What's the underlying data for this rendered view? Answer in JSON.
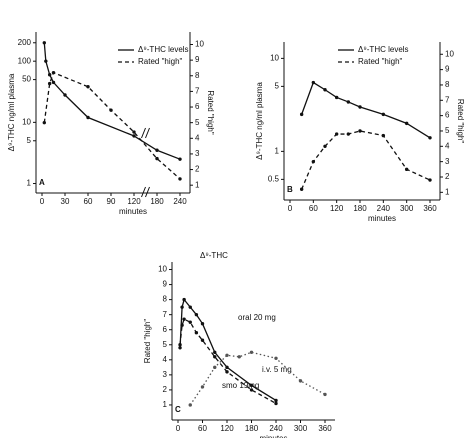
{
  "chart_data": [
    {
      "type": "line",
      "panel": "A",
      "y_label": "Δ⁹-THC ng/ml plasma",
      "y2_label": "Rated \"high\"",
      "x_label": "minutes",
      "ylog": true,
      "ylim": [
        0.7,
        300
      ],
      "yticks": [
        1,
        5,
        10,
        50,
        100,
        200
      ],
      "y2lim": [
        0.5,
        10.8
      ],
      "y2ticks": [
        1,
        2,
        3,
        4,
        5,
        6,
        7,
        8,
        9,
        10
      ],
      "xlim": [
        0,
        250
      ],
      "xticks": [
        0,
        30,
        60,
        90,
        120,
        180,
        240
      ],
      "axis_break": true,
      "legend": true,
      "series": [
        {
          "name": "Δ⁹-THC levels",
          "style": "solid",
          "color": "#111",
          "x": [
            3,
            5,
            10,
            15,
            30,
            60,
            120,
            180,
            240
          ],
          "values": [
            200,
            100,
            60,
            45,
            28,
            12,
            6,
            3.5,
            2.5
          ]
        },
        {
          "name": "Rated \"high\"",
          "style": "dashed",
          "color": "#111",
          "axis": "y2",
          "x": [
            3,
            10,
            15,
            60,
            90,
            120,
            180,
            240
          ],
          "values": [
            5,
            7.5,
            8.2,
            7.3,
            5.8,
            4.4,
            2.7,
            1.4
          ]
        }
      ]
    },
    {
      "type": "line",
      "panel": "B",
      "y_label": "Δ⁹-THC ng/ml plasma",
      "y2_label": "Rated \"high\"",
      "x_label": "minutes",
      "ylog": true,
      "ylim": [
        0.3,
        15
      ],
      "yticks": [
        0.5,
        1,
        5,
        10
      ],
      "y2lim": [
        0.5,
        10.8
      ],
      "y2ticks": [
        1,
        2,
        3,
        4,
        5,
        6,
        7,
        8,
        9,
        10
      ],
      "xlim": [
        0,
        380
      ],
      "xticks": [
        0,
        60,
        120,
        180,
        240,
        300,
        360
      ],
      "axis_break": false,
      "legend": true,
      "series": [
        {
          "name": "Δ⁹-THC levels",
          "style": "solid",
          "color": "#111",
          "x": [
            30,
            60,
            90,
            120,
            150,
            180,
            240,
            300,
            360
          ],
          "values": [
            2.5,
            5.5,
            4.6,
            3.8,
            3.4,
            3.0,
            2.5,
            2.0,
            1.4
          ]
        },
        {
          "name": "Rated \"high\"",
          "style": "dashed",
          "color": "#111",
          "axis": "y2",
          "x": [
            30,
            60,
            90,
            120,
            150,
            180,
            240,
            300,
            360
          ],
          "values": [
            1.2,
            3,
            4,
            4.8,
            4.8,
            5,
            4.7,
            2.5,
            1.8
          ]
        }
      ]
    },
    {
      "type": "line",
      "panel": "C",
      "title": "Δ⁹-THC",
      "y_label": "Rated \"high\"",
      "x_label": "minutes",
      "ylog": false,
      "ylim": [
        0,
        10.5
      ],
      "yticks": [
        1,
        2,
        3,
        4,
        5,
        6,
        7,
        8,
        9,
        10
      ],
      "xlim": [
        0,
        380
      ],
      "xticks": [
        0,
        60,
        120,
        180,
        240,
        300,
        360
      ],
      "axis_break": false,
      "legend": false,
      "series": [
        {
          "name": "i.v. 5 mg",
          "style": "solid",
          "color": "#111",
          "x": [
            5,
            10,
            15,
            30,
            45,
            60,
            90,
            120,
            180,
            240
          ],
          "values": [
            4.8,
            7.5,
            8,
            7.5,
            7,
            6.4,
            4.5,
            3.5,
            2.3,
            1.3
          ]
        },
        {
          "name": "smo 19mg",
          "style": "dashed",
          "color": "#111",
          "x": [
            5,
            10,
            15,
            30,
            45,
            60,
            90,
            120,
            180,
            240
          ],
          "values": [
            5,
            6.3,
            6.7,
            6.5,
            5.8,
            5.3,
            4.2,
            3.2,
            2,
            1.1
          ]
        },
        {
          "name": "oral 20 mg",
          "style": "dotted",
          "color": "#555",
          "x": [
            30,
            60,
            90,
            120,
            150,
            180,
            240,
            300,
            360
          ],
          "values": [
            1,
            2.2,
            3.5,
            4.3,
            4.2,
            4.5,
            4.1,
            2.6,
            1.7
          ]
        }
      ]
    }
  ]
}
